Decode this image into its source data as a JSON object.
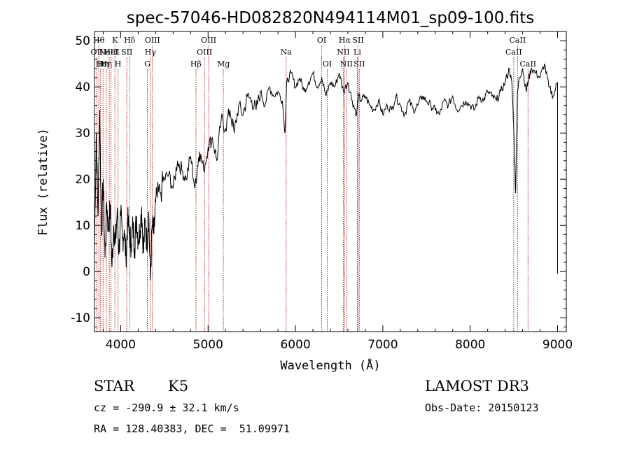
{
  "chart_data": {
    "type": "line",
    "title": "spec-57046-HD082820N494114M01_sp09-100.fits",
    "xlabel": "Wavelength (Å)",
    "ylabel": "Flux (relative)",
    "xlim": [
      3700,
      9100
    ],
    "ylim": [
      -13,
      52
    ],
    "xticks": [
      4000,
      5000,
      6000,
      7000,
      8000,
      9000
    ],
    "yticks": [
      -10,
      0,
      10,
      20,
      30,
      40,
      50
    ],
    "line_color": "#000000",
    "marker_color": "#b22222",
    "series": [
      {
        "x": [
          3700,
          3720,
          3740,
          3760,
          3780,
          3800,
          3820,
          3840,
          3860,
          3880,
          3900,
          3920,
          3940,
          3960,
          3980,
          4000,
          4020,
          4040,
          4060,
          4080,
          4100,
          4120,
          4140,
          4160,
          4180,
          4200,
          4220,
          4240,
          4260,
          4280,
          4300,
          4320,
          4340,
          4360,
          4380,
          4400,
          4450,
          4500,
          4550,
          4600,
          4650,
          4700,
          4750,
          4800,
          4850,
          4880,
          4900,
          4950,
          5000,
          5050,
          5100,
          5150,
          5200,
          5250,
          5300,
          5350,
          5400,
          5450,
          5500,
          5550,
          5600,
          5650,
          5700,
          5750,
          5800,
          5850,
          5880,
          5900,
          5950,
          6000,
          6050,
          6100,
          6150,
          6200,
          6250,
          6300,
          6350,
          6400,
          6450,
          6500,
          6550,
          6600,
          6650,
          6700,
          6720,
          6750,
          6800,
          6850,
          6900,
          6950,
          7000,
          7050,
          7100,
          7150,
          7200,
          7250,
          7300,
          7350,
          7400,
          7450,
          7500,
          7550,
          7600,
          7650,
          7700,
          7750,
          7800,
          7850,
          7900,
          7950,
          8000,
          8050,
          8100,
          8150,
          8200,
          8250,
          8300,
          8350,
          8400,
          8450,
          8480,
          8500,
          8520,
          8540,
          8560,
          8600,
          8640,
          8660,
          8700,
          8750,
          8800,
          8850,
          8900,
          8950,
          9000
        ],
        "values": [
          5,
          30,
          12,
          35,
          8,
          20,
          3,
          15,
          9,
          14,
          1,
          10,
          6,
          13,
          4,
          12,
          7,
          9,
          3,
          11,
          8,
          6,
          10,
          5,
          12,
          7,
          9,
          14,
          4,
          11,
          6,
          13,
          -2,
          10,
          8,
          15,
          17,
          20,
          21,
          18,
          24,
          22,
          20,
          25,
          18,
          23,
          26,
          22,
          27,
          29,
          24,
          33,
          31,
          35,
          30,
          36,
          34,
          38,
          37,
          35,
          39,
          36,
          40,
          38,
          39,
          37,
          30,
          41,
          43,
          40,
          42,
          39,
          41,
          43,
          40,
          42,
          38,
          41,
          40,
          43,
          39,
          41,
          37,
          34,
          38,
          37,
          38,
          36,
          35,
          37,
          34,
          36,
          35,
          38,
          36,
          34,
          37,
          35,
          36,
          38,
          37,
          36,
          35,
          34,
          37,
          36,
          38,
          35,
          36,
          37,
          36,
          35,
          38,
          37,
          39,
          38,
          37,
          39,
          41,
          44,
          40,
          30,
          17,
          38,
          42,
          44,
          39,
          41,
          44,
          43,
          42,
          45,
          40,
          38,
          41
        ]
      }
    ],
    "line_markers": [
      {
        "x": 3727,
        "row": 1,
        "label": "OII"
      },
      {
        "x": 3750,
        "row": 0,
        "label": "Hθ"
      },
      {
        "x": 3770,
        "row": 2,
        "label": "Hι"
      },
      {
        "x": 3798,
        "row": 2,
        "label": "Hη"
      },
      {
        "x": 3835,
        "row": 2,
        "label": "Hη"
      },
      {
        "x": 3869,
        "row": 1,
        "label": "NeIII"
      },
      {
        "x": 3889,
        "row": 1,
        "label": "HeI"
      },
      {
        "x": 3934,
        "row": 0,
        "label": "K"
      },
      {
        "x": 3969,
        "row": 2,
        "label": "H"
      },
      {
        "x": 4070,
        "row": 1,
        "label": "SII"
      },
      {
        "x": 4102,
        "row": 0,
        "label": "Hδ"
      },
      {
        "x": 4305,
        "row": 2,
        "label": "G"
      },
      {
        "x": 4340,
        "row": 1,
        "label": "Hγ"
      },
      {
        "x": 4363,
        "row": 0,
        "label": "OIII"
      },
      {
        "x": 4861,
        "row": 2,
        "label": "Hβ"
      },
      {
        "x": 4959,
        "row": 1,
        "label": "OIII"
      },
      {
        "x": 5007,
        "row": 0,
        "label": "OIII"
      },
      {
        "x": 5175,
        "row": 2,
        "label": "Mg"
      },
      {
        "x": 5893,
        "row": 1,
        "label": "Na"
      },
      {
        "x": 6300,
        "row": 0,
        "label": "OI"
      },
      {
        "x": 6364,
        "row": 2,
        "label": "OI"
      },
      {
        "x": 6548,
        "row": 1,
        "label": "NII"
      },
      {
        "x": 6563,
        "row": 0,
        "label": "Hα"
      },
      {
        "x": 6583,
        "row": 2,
        "label": "NII"
      },
      {
        "x": 6708,
        "row": 1,
        "label": "Li"
      },
      {
        "x": 6717,
        "row": 0,
        "label": "SII"
      },
      {
        "x": 6731,
        "row": 2,
        "label": "SII"
      },
      {
        "x": 8498,
        "row": 1,
        "label": "CaII"
      },
      {
        "x": 8542,
        "row": 0,
        "label": "CaII"
      },
      {
        "x": 8662,
        "row": 2,
        "label": "CaII"
      }
    ]
  },
  "info": {
    "class": "STAR",
    "subclass": "K5",
    "survey": "LAMOST DR3",
    "redshift": "cz = -290.9 ± 32.1 km/s",
    "obs_date": "Obs-Date: 20150123",
    "coords": "RA = 128.40383, DEC =  51.09971"
  }
}
